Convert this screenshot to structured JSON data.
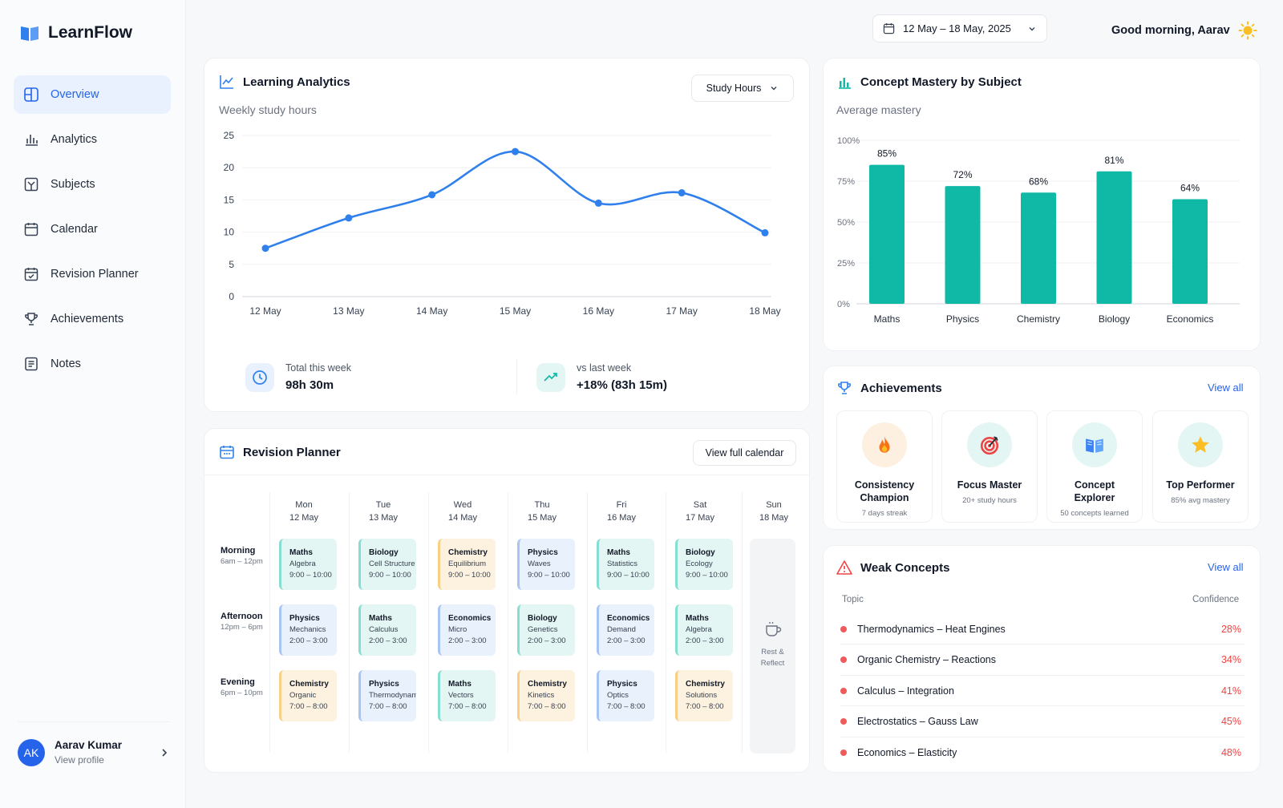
{
  "app": {
    "name": "LearnFlow"
  },
  "nav": [
    {
      "label": "Overview",
      "icon": "overview-icon",
      "active": true
    },
    {
      "label": "Analytics",
      "icon": "bar-chart-icon"
    },
    {
      "label": "Subjects",
      "icon": "subjects-icon"
    },
    {
      "label": "Calendar",
      "icon": "calendar-icon"
    },
    {
      "label": "Revision Planner",
      "icon": "planner-icon"
    },
    {
      "label": "Achievements",
      "icon": "trophy-icon"
    },
    {
      "label": "Notes",
      "icon": "notes-icon"
    }
  ],
  "user": {
    "initials": "AK",
    "name": "Aarav Kumar",
    "sub": "View profile"
  },
  "header": {
    "date_range": "12 May – 18 May, 2025",
    "greeting": "Good morning, Aarav"
  },
  "analytics": {
    "title": "Learning Analytics",
    "subtitle": "Weekly study hours",
    "dropdown": "Study Hours",
    "total_label": "Total this week",
    "total_value": "98h 30m",
    "vs_label": "vs last week",
    "vs_value": "+18% (83h 15m)"
  },
  "mastery": {
    "title": "Concept Mastery by Subject",
    "subtitle": "Average mastery"
  },
  "chart_data": [
    {
      "type": "line",
      "x": [
        "12 May",
        "13 May",
        "14 May",
        "15 May",
        "16 May",
        "17 May",
        "18 May"
      ],
      "series": [
        {
          "values": [
            7.5,
            12.2,
            15.8,
            22.5,
            14.5,
            16.1,
            9.9
          ]
        }
      ],
      "yticks": [
        0,
        5,
        10,
        15,
        20,
        25
      ],
      "ylim": [
        0,
        25
      ],
      "color": "#2f80ed",
      "grid": true
    },
    {
      "type": "bar",
      "categories": [
        "Maths",
        "Physics",
        "Chemistry",
        "Biology",
        "Economics"
      ],
      "values": [
        85,
        72,
        68,
        81,
        64
      ],
      "value_labels": [
        "85%",
        "72%",
        "68%",
        "81%",
        "64%"
      ],
      "yticks": [
        "0%",
        "25%",
        "50%",
        "75%",
        "100%"
      ],
      "ylim": [
        0,
        100
      ],
      "color": "#10b8a6",
      "grid": true
    }
  ],
  "planner": {
    "title": "Revision Planner",
    "button": "View full calendar",
    "days": [
      {
        "d": "Mon",
        "date": "12 May"
      },
      {
        "d": "Tue",
        "date": "13 May"
      },
      {
        "d": "Wed",
        "date": "14 May"
      },
      {
        "d": "Thu",
        "date": "15 May"
      },
      {
        "d": "Fri",
        "date": "16 May"
      },
      {
        "d": "Sat",
        "date": "17 May"
      },
      {
        "d": "Sun",
        "date": "18 May"
      }
    ],
    "slots": [
      {
        "name": "Morning",
        "time": "6am – 12pm"
      },
      {
        "name": "Afternoon",
        "time": "12pm – 6pm"
      },
      {
        "name": "Evening",
        "time": "6pm – 10pm"
      }
    ],
    "events": [
      [
        {
          "s": "Maths",
          "t": "Algebra",
          "h": "9:00 – 10:00",
          "c": "teal"
        },
        {
          "s": "Biology",
          "t": "Cell Structure",
          "h": "9:00 – 10:00",
          "c": "teal"
        },
        {
          "s": "Chemistry",
          "t": "Equilibrium",
          "h": "9:00 – 10:00",
          "c": "orange"
        },
        {
          "s": "Physics",
          "t": "Waves",
          "h": "9:00 – 10:00",
          "c": "blue"
        },
        {
          "s": "Maths",
          "t": "Statistics",
          "h": "9:00 – 10:00",
          "c": "teal"
        },
        {
          "s": "Biology",
          "t": "Ecology",
          "h": "9:00 – 10:00",
          "c": "teal"
        }
      ],
      [
        {
          "s": "Physics",
          "t": "Mechanics",
          "h": "2:00 – 3:00",
          "c": "blue"
        },
        {
          "s": "Maths",
          "t": "Calculus",
          "h": "2:00 – 3:00",
          "c": "teal"
        },
        {
          "s": "Economics",
          "t": "Micro",
          "h": "2:00 – 3:00",
          "c": "blue"
        },
        {
          "s": "Biology",
          "t": "Genetics",
          "h": "2:00 – 3:00",
          "c": "teal"
        },
        {
          "s": "Economics",
          "t": "Demand",
          "h": "2:00 – 3:00",
          "c": "blue"
        },
        {
          "s": "Maths",
          "t": "Algebra",
          "h": "2:00 – 3:00",
          "c": "teal"
        }
      ],
      [
        {
          "s": "Chemistry",
          "t": "Organic",
          "h": "7:00 – 8:00",
          "c": "orange"
        },
        {
          "s": "Physics",
          "t": "Thermodynamics",
          "h": "7:00 – 8:00",
          "c": "blue"
        },
        {
          "s": "Maths",
          "t": "Vectors",
          "h": "7:00 – 8:00",
          "c": "teal"
        },
        {
          "s": "Chemistry",
          "t": "Kinetics",
          "h": "7:00 – 8:00",
          "c": "orange"
        },
        {
          "s": "Physics",
          "t": "Optics",
          "h": "7:00 – 8:00",
          "c": "blue"
        },
        {
          "s": "Chemistry",
          "t": "Solutions",
          "h": "7:00 – 8:00",
          "c": "orange"
        }
      ]
    ],
    "rest": "Rest & Reflect"
  },
  "achievements": {
    "title": "Achievements",
    "link": "View all",
    "items": [
      {
        "t": "Consistency Champion",
        "s": "7 days streak",
        "icon": "fire-icon",
        "bg": "#fdf0e0"
      },
      {
        "t": "Focus Master",
        "s": "20+ study hours",
        "icon": "target-icon",
        "bg": "#e4f6f3"
      },
      {
        "t": "Concept Explorer",
        "s": "50 concepts learned",
        "icon": "book-icon",
        "bg": "#e4f6f3"
      },
      {
        "t": "Top Performer",
        "s": "85% avg mastery",
        "icon": "star-icon",
        "bg": "#e4f6f3"
      }
    ]
  },
  "weak": {
    "title": "Weak Concepts",
    "link": "View all",
    "col_topic": "Topic",
    "col_conf": "Confidence",
    "rows": [
      {
        "t": "Thermodynamics – Heat Engines",
        "p": "28%"
      },
      {
        "t": "Organic Chemistry – Reactions",
        "p": "34%"
      },
      {
        "t": "Calculus – Integration",
        "p": "41%"
      },
      {
        "t": "Electrostatics – Gauss Law",
        "p": "45%"
      },
      {
        "t": "Economics – Elasticity",
        "p": "48%"
      }
    ]
  }
}
